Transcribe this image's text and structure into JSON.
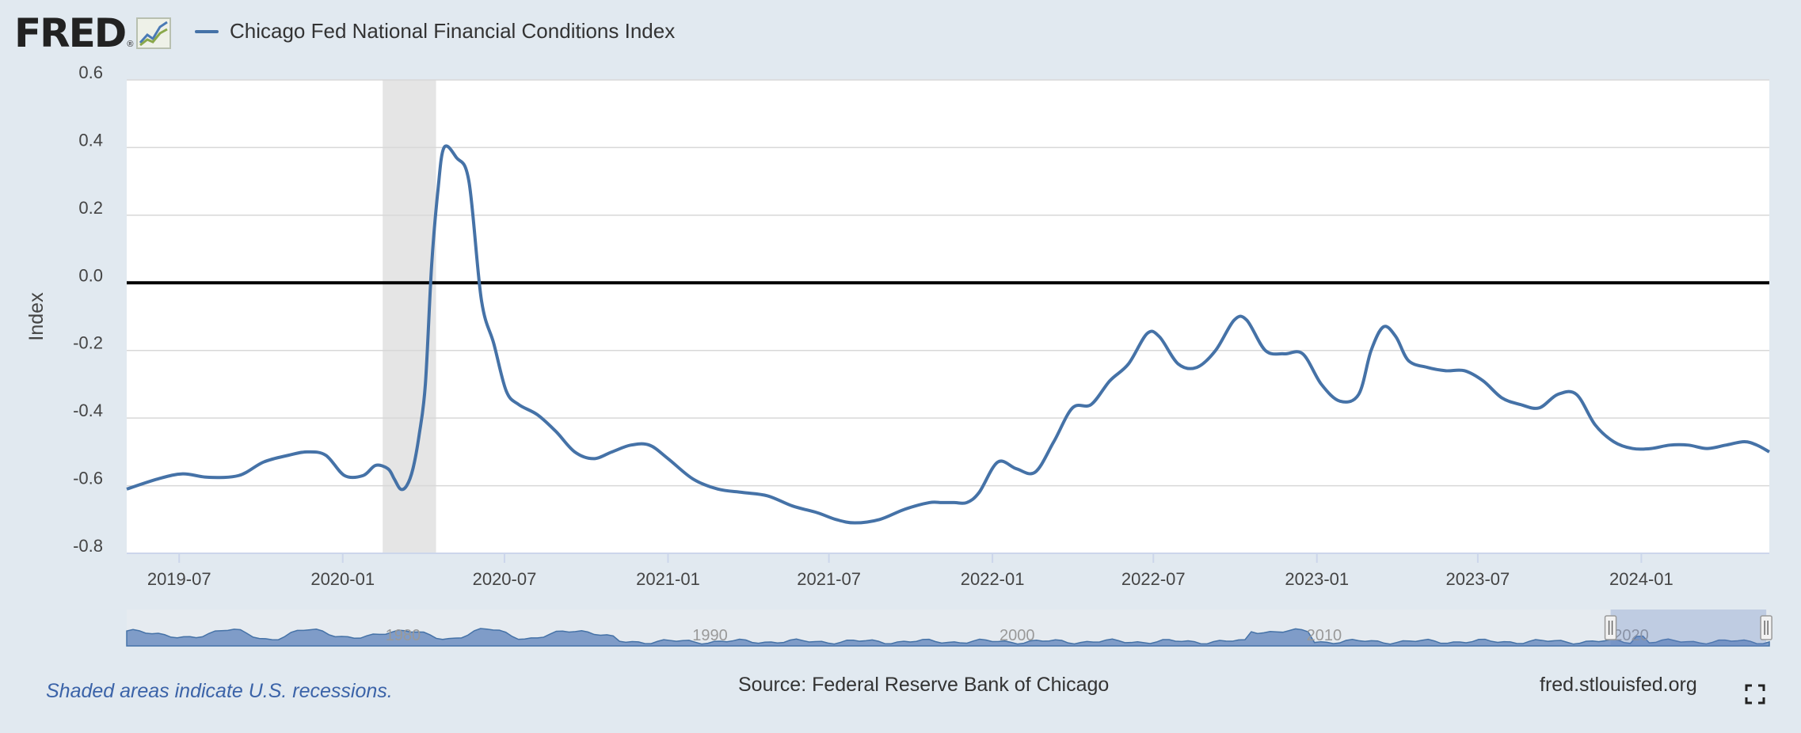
{
  "header": {
    "logo_text": "FRED",
    "logo_mark": "®",
    "series_title": "Chicago Fed National Financial Conditions Index",
    "series_color": "#4572a7"
  },
  "footer": {
    "recession_note": "Shaded areas indicate U.S. recessions.",
    "source": "Source: Federal Reserve Bank of Chicago",
    "site": "fred.stlouisfed.org"
  },
  "icons": {
    "logo_graph": "line-chart-icon",
    "fullscreen": "fullscreen-icon"
  },
  "chart_data": {
    "type": "line",
    "title": "Chicago Fed National Financial Conditions Index",
    "ylabel": "Index",
    "xlabel": "",
    "ylim": [
      -0.8,
      0.6
    ],
    "yticks": [
      0.6,
      0.4,
      0.2,
      0.0,
      -0.2,
      -0.4,
      -0.6,
      -0.8
    ],
    "ytick_labels": [
      "0.6",
      "0.4",
      "0.2",
      "0.0",
      "-0.2",
      "-0.4",
      "-0.6",
      "-0.8"
    ],
    "xlim": [
      "2019-05-03",
      "2024-05-24"
    ],
    "xticks": [
      "2019-07-01",
      "2020-01-01",
      "2020-07-01",
      "2021-01-01",
      "2021-07-01",
      "2022-01-01",
      "2022-07-01",
      "2023-01-01",
      "2023-07-01",
      "2024-01-01"
    ],
    "xtick_labels": [
      "2019-07",
      "2020-01",
      "2020-07",
      "2021-01",
      "2021-07",
      "2022-01",
      "2022-07",
      "2023-01",
      "2023-07",
      "2024-01"
    ],
    "grid": true,
    "zero_line": 0.0,
    "recessions": [
      {
        "start": "2020-02-15",
        "end": "2020-04-15"
      }
    ],
    "series": [
      {
        "name": "Chicago Fed National Financial Conditions Index",
        "color": "#4572a7",
        "x": [
          "2019-05-03",
          "2019-06-07",
          "2019-07-05",
          "2019-08-02",
          "2019-09-06",
          "2019-10-04",
          "2019-11-01",
          "2019-11-22",
          "2019-12-13",
          "2020-01-03",
          "2020-01-24",
          "2020-02-07",
          "2020-02-21",
          "2020-02-28",
          "2020-03-06",
          "2020-03-13",
          "2020-03-20",
          "2020-03-27",
          "2020-04-03",
          "2020-04-10",
          "2020-04-17",
          "2020-04-24",
          "2020-05-08",
          "2020-05-22",
          "2020-06-05",
          "2020-06-19",
          "2020-07-03",
          "2020-07-17",
          "2020-08-07",
          "2020-08-28",
          "2020-09-18",
          "2020-10-09",
          "2020-10-30",
          "2020-11-20",
          "2020-12-11",
          "2021-01-01",
          "2021-01-29",
          "2021-02-26",
          "2021-03-26",
          "2021-04-23",
          "2021-05-21",
          "2021-06-18",
          "2021-07-09",
          "2021-07-30",
          "2021-08-27",
          "2021-09-24",
          "2021-10-22",
          "2021-11-05",
          "2021-11-19",
          "2021-12-03",
          "2021-12-17",
          "2022-01-07",
          "2022-01-28",
          "2022-02-18",
          "2022-03-11",
          "2022-04-01",
          "2022-04-22",
          "2022-05-13",
          "2022-06-03",
          "2022-06-24",
          "2022-07-08",
          "2022-07-29",
          "2022-08-19",
          "2022-09-09",
          "2022-09-30",
          "2022-10-14",
          "2022-11-04",
          "2022-11-25",
          "2022-12-16",
          "2023-01-06",
          "2023-01-27",
          "2023-02-17",
          "2023-03-03",
          "2023-03-17",
          "2023-03-31",
          "2023-04-14",
          "2023-05-05",
          "2023-05-26",
          "2023-06-16",
          "2023-07-07",
          "2023-07-28",
          "2023-08-18",
          "2023-09-08",
          "2023-09-29",
          "2023-10-20",
          "2023-11-10",
          "2023-12-01",
          "2023-12-22",
          "2024-01-12",
          "2024-02-02",
          "2024-02-23",
          "2024-03-15",
          "2024-04-05",
          "2024-04-26",
          "2024-05-10",
          "2024-05-24"
        ],
        "values": [
          -0.61,
          -0.58,
          -0.565,
          -0.575,
          -0.57,
          -0.53,
          -0.51,
          -0.5,
          -0.51,
          -0.57,
          -0.57,
          -0.54,
          -0.55,
          -0.58,
          -0.61,
          -0.6,
          -0.55,
          -0.45,
          -0.3,
          0.05,
          0.27,
          0.4,
          0.37,
          0.3,
          -0.05,
          -0.18,
          -0.32,
          -0.36,
          -0.39,
          -0.44,
          -0.5,
          -0.52,
          -0.5,
          -0.48,
          -0.48,
          -0.52,
          -0.58,
          -0.61,
          -0.62,
          -0.63,
          -0.66,
          -0.68,
          -0.7,
          -0.71,
          -0.7,
          -0.67,
          -0.65,
          -0.65,
          -0.65,
          -0.65,
          -0.62,
          -0.53,
          -0.55,
          -0.56,
          -0.47,
          -0.37,
          -0.36,
          -0.29,
          -0.24,
          -0.15,
          -0.16,
          -0.24,
          -0.25,
          -0.2,
          -0.11,
          -0.11,
          -0.2,
          -0.21,
          -0.21,
          -0.3,
          -0.35,
          -0.33,
          -0.2,
          -0.13,
          -0.16,
          -0.23,
          -0.25,
          -0.26,
          -0.26,
          -0.29,
          -0.34,
          -0.36,
          -0.37,
          -0.33,
          -0.33,
          -0.42,
          -0.47,
          -0.49,
          -0.49,
          -0.48,
          -0.48,
          -0.49,
          -0.48,
          -0.47,
          -0.48,
          -0.5
        ]
      }
    ],
    "navigator": {
      "labels": [
        "1980",
        "1990",
        "2000",
        "2010",
        "2020"
      ],
      "label_years": [
        1980,
        1990,
        2000,
        2010,
        2020
      ],
      "range_years": [
        1971,
        2024.5
      ],
      "selected_years": [
        2019.33,
        2024.4
      ]
    }
  }
}
